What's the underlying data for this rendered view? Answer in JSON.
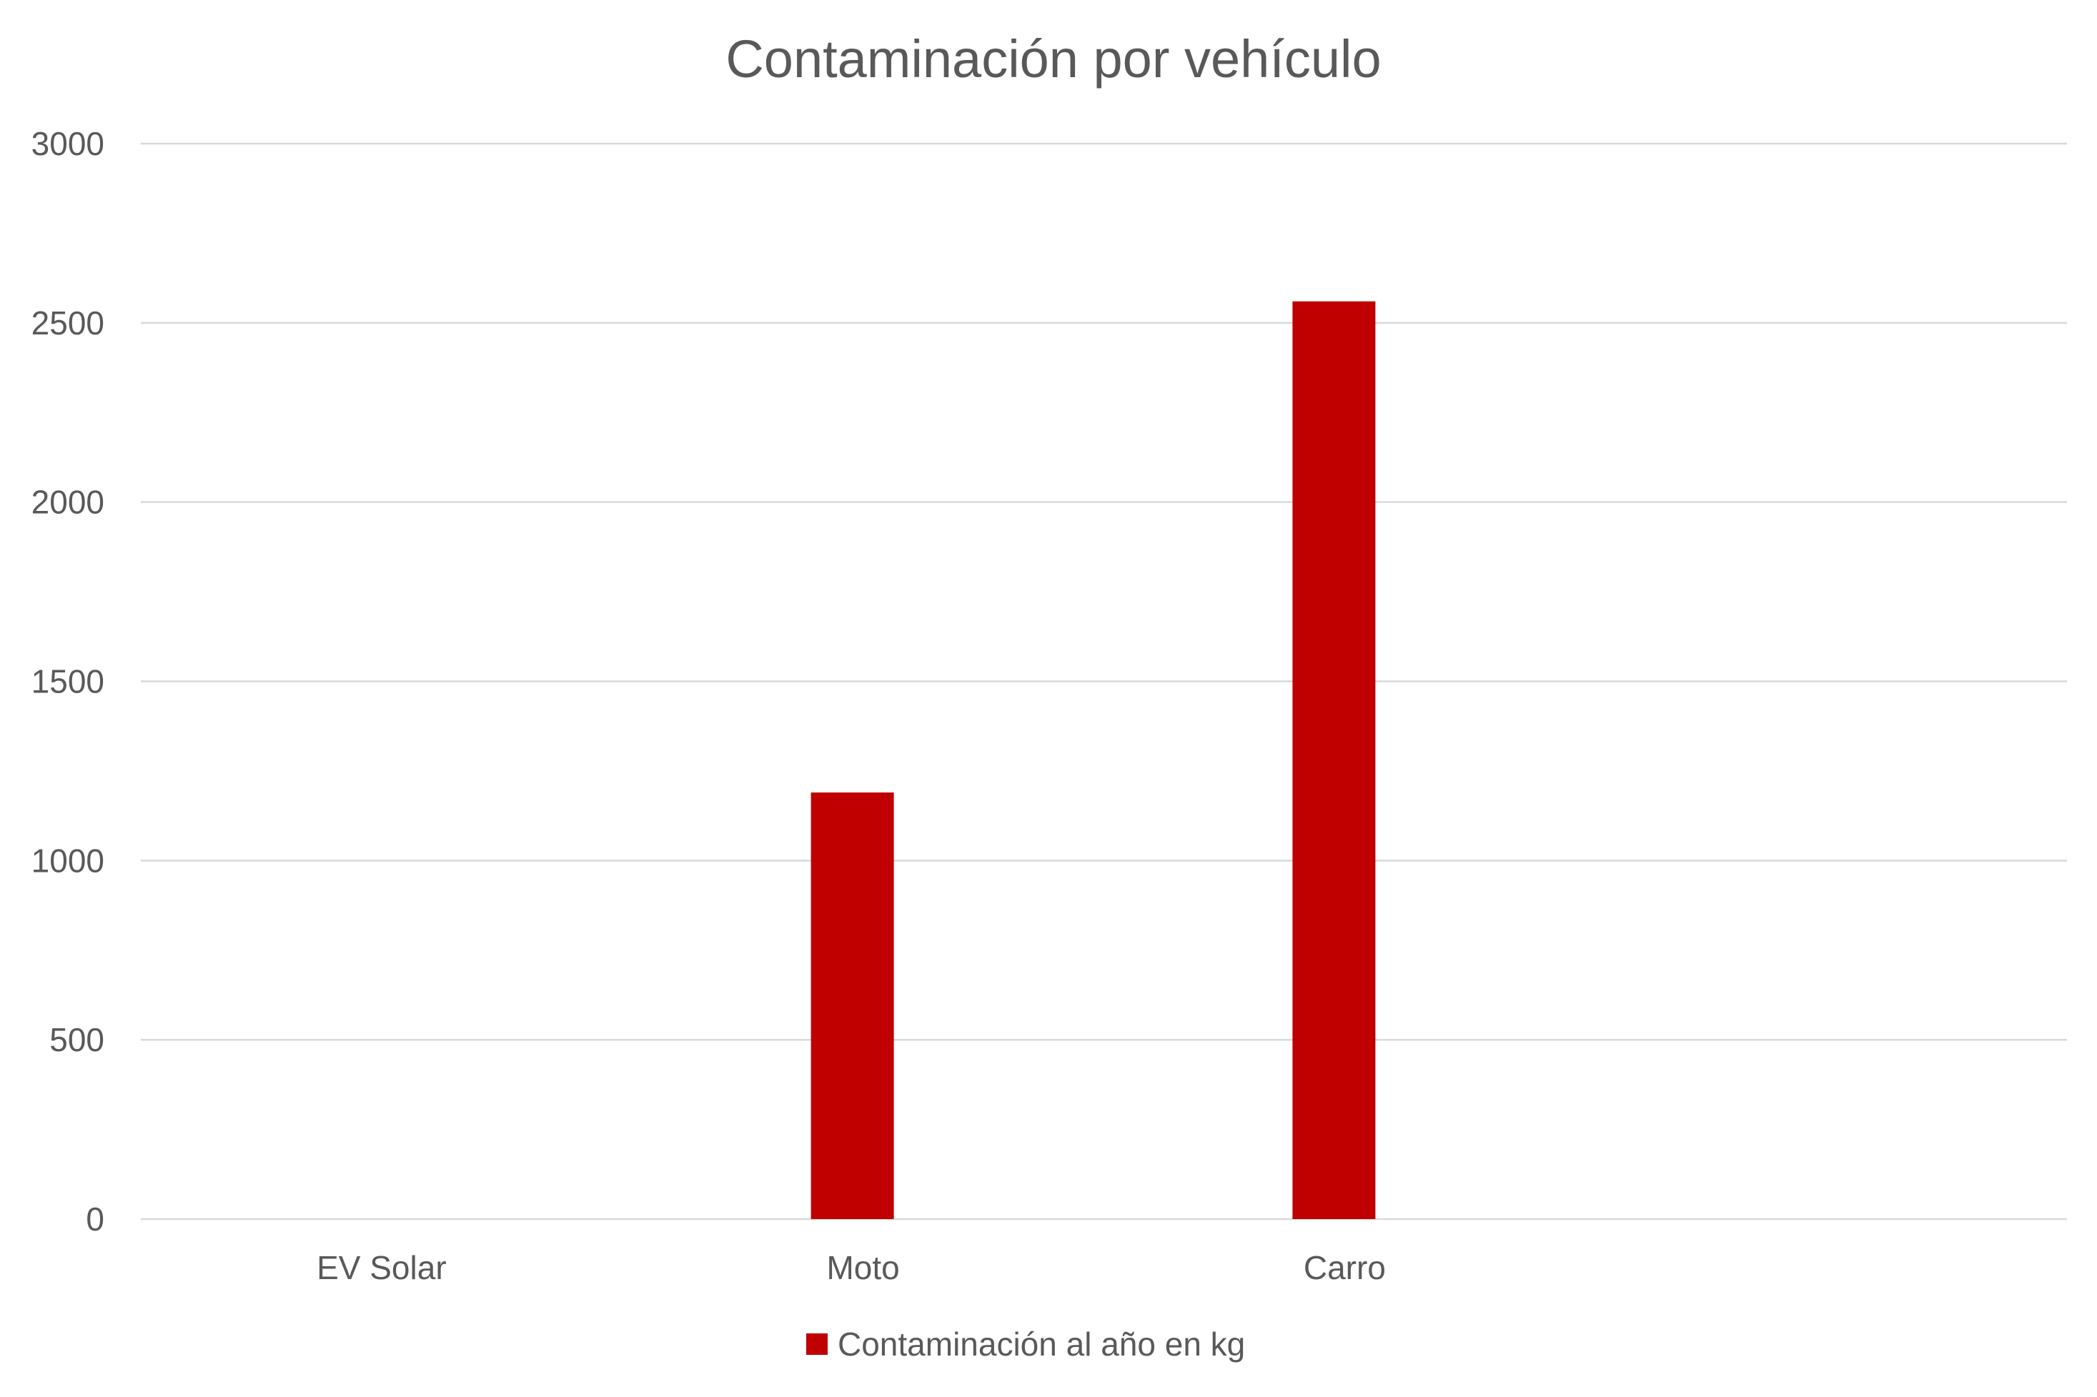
{
  "chart_data": {
    "type": "bar",
    "title": "Contaminación por vehículo",
    "xlabel": "",
    "ylabel": "",
    "categories": [
      "EV Solar",
      "Moto",
      "Carro",
      ""
    ],
    "series": [
      {
        "name": "Contaminación al año en kg",
        "values": [
          0,
          1190,
          2560,
          null
        ],
        "color": "#C00000"
      }
    ],
    "ylim": [
      0,
      3000
    ],
    "yticks": [
      "0",
      "500",
      "1000",
      "1500",
      "2000",
      "2500",
      "3000"
    ],
    "grid": true,
    "legend_position": "bottom"
  }
}
